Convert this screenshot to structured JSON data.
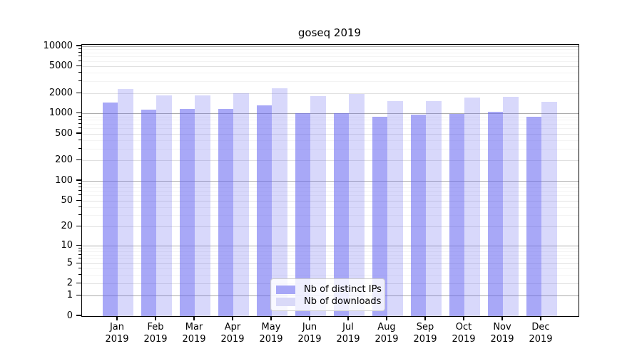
{
  "title": "goseq 2019",
  "colors": {
    "background": "#ffffff",
    "axis": "#000000",
    "text": "#000000",
    "grid_decade": "#ababab",
    "grid_labeled": "#e0e0e0",
    "grid_minor": "#f3f3f3",
    "legend_border": "#cccccc"
  },
  "chart_data": {
    "type": "bar",
    "title": "goseq 2019",
    "categories": [
      "Jan 2019",
      "Feb 2019",
      "Mar 2019",
      "Apr 2019",
      "May 2019",
      "Jun 2019",
      "Jul 2019",
      "Aug 2019",
      "Sep 2019",
      "Oct 2019",
      "Nov 2019",
      "Dec 2019"
    ],
    "series": [
      {
        "name": "Nb of distinct IPs",
        "swatch": "#a7a7f7",
        "fill": "rgba(100,100,240,0.56)",
        "values": [
          1450,
          1150,
          1170,
          1190,
          1340,
          1020,
          1020,
          910,
          980,
          1000,
          1060,
          900
        ]
      },
      {
        "name": "Nb of downloads",
        "swatch": "#d9d9f8",
        "fill": "rgba(100,100,240,0.25)",
        "values": [
          2300,
          1860,
          1890,
          1990,
          2370,
          1820,
          1960,
          1530,
          1550,
          1720,
          1800,
          1510
        ]
      }
    ],
    "yscale": "log10(value+1)",
    "ylim": [
      0,
      10500
    ],
    "yticks": [
      0,
      1,
      2,
      5,
      10,
      20,
      50,
      100,
      200,
      500,
      1000,
      2000,
      5000,
      10000
    ],
    "grid": true,
    "legend_position": "bottom-center"
  }
}
